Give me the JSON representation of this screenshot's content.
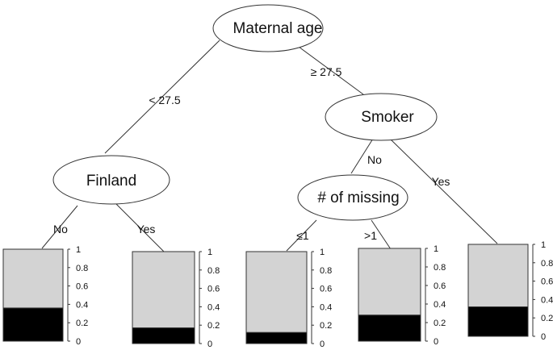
{
  "nodes": {
    "root": "Maternal age",
    "smoker": "Smoker",
    "finland": "Finland",
    "missing": "# of missing"
  },
  "edges": {
    "root_left": "< 27.5",
    "root_right": "≥ 27.5",
    "smoker_no": "No",
    "smoker_yes": "Yes",
    "finland_no": "No",
    "finland_yes": "Yes",
    "missing_le1": "≤1",
    "missing_gt1": ">1"
  },
  "axis_ticks": [
    "0",
    "0.2",
    "0.4",
    "0.6",
    "0.8",
    "1"
  ],
  "colors": {
    "upper": "#d3d3d3",
    "lower": "#000000",
    "line": "#333333"
  },
  "chart_data": {
    "type": "bar",
    "description_stack": "stacked proportion bars at tree leaves",
    "categories": [
      "Finland: No",
      "Finland: Yes",
      "# of missing: ≤1",
      "# of missing: >1",
      "Smoker: Yes"
    ],
    "lower_values": [
      0.36,
      0.17,
      0.12,
      0.28,
      0.32
    ],
    "upper_values": [
      0.64,
      0.83,
      0.88,
      0.72,
      0.68
    ],
    "ylim": [
      0,
      1
    ]
  }
}
